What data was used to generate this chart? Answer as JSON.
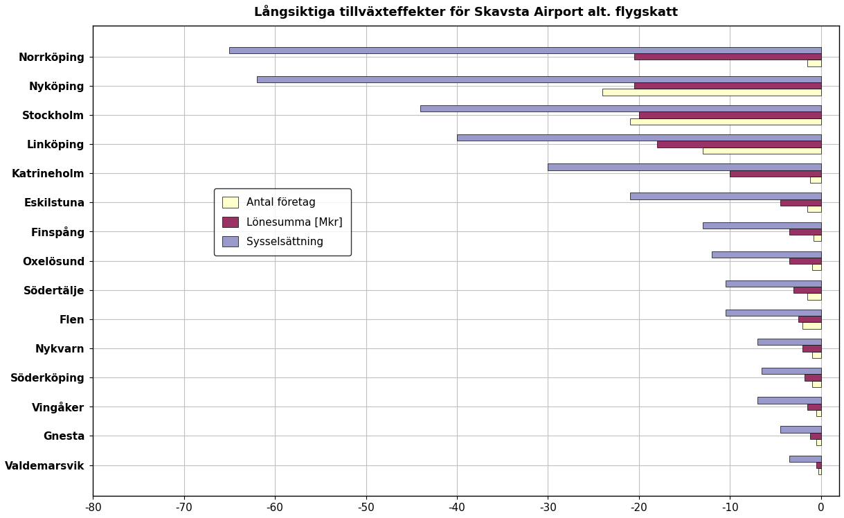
{
  "title": "Långsiktiga tillväxteffekter för Skavsta Airport alt. flygskatt",
  "categories": [
    "Norrköping",
    "Nyköping",
    "Stockholm",
    "Linköping",
    "Katrineholm",
    "Eskilstuna",
    "Finspång",
    "Oxelösund",
    "Södertälje",
    "Flen",
    "Nykvarn",
    "Söderköping",
    "Vingåker",
    "Gnesta",
    "Valdemarsvik"
  ],
  "antal_foretag": [
    -1.5,
    -24.0,
    -21.0,
    -13.0,
    -1.2,
    -1.5,
    -0.8,
    -1.0,
    -1.5,
    -2.0,
    -1.0,
    -1.0,
    -0.5,
    -0.5,
    -0.3
  ],
  "lonesumma": [
    -20.5,
    -20.5,
    -20.0,
    -18.0,
    -10.0,
    -4.5,
    -3.5,
    -3.5,
    -3.0,
    -2.5,
    -2.0,
    -1.8,
    -1.5,
    -1.2,
    -0.5
  ],
  "sysselsattning": [
    -65.0,
    -62.0,
    -44.0,
    -40.0,
    -30.0,
    -21.0,
    -13.0,
    -12.0,
    -10.5,
    -10.5,
    -7.0,
    -6.5,
    -7.0,
    -4.5,
    -3.5
  ],
  "color_antal": "#ffffcc",
  "color_lonesumma": "#993366",
  "color_sysselsattning": "#9999cc",
  "xlim": [
    -80,
    2
  ],
  "xticks": [
    -80,
    -70,
    -60,
    -50,
    -40,
    -30,
    -20,
    -10,
    0
  ],
  "legend_labels": [
    "Antal företag",
    "Lönesumma [Mkr]",
    "Sysselsättning"
  ],
  "background_color": "#ffffff",
  "grid_color": "#c0c0c0"
}
